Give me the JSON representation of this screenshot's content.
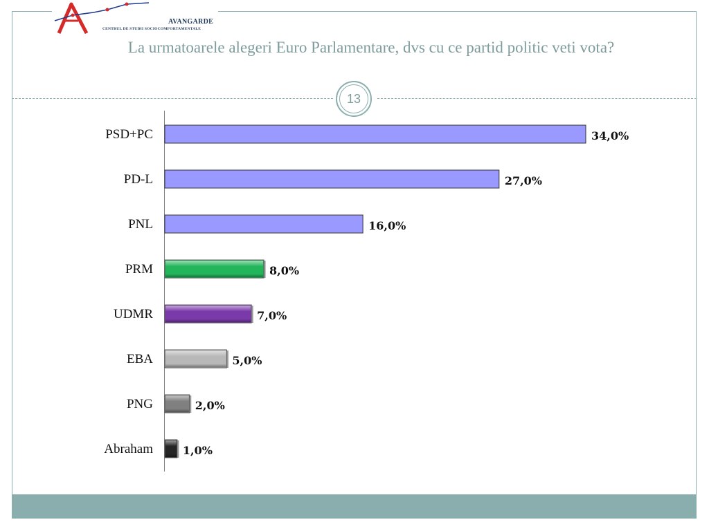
{
  "logo": {
    "name": "AVANGARDE",
    "subtitle": "CENTRUL DE STUDII SOCIOCOMPORTAMENTALE"
  },
  "slide": {
    "title": "La urmatoarele alegeri Euro Parlamentare, dvs cu ce partid politic veti vota?",
    "page_number": "13"
  },
  "colors": {
    "frame": "#8aaeae",
    "title": "#7e9c9c"
  },
  "chart_data": {
    "type": "bar",
    "orientation": "horizontal",
    "categories": [
      "PSD+PC",
      "PD-L",
      "PNL",
      "PRM",
      "UDMR",
      "EBA",
      "PNG",
      "Abraham"
    ],
    "values": [
      34.0,
      27.0,
      16.0,
      8.0,
      7.0,
      5.0,
      2.0,
      1.0
    ],
    "value_labels": [
      "34,0%",
      "27,0%",
      "16,0%",
      "8,0%",
      "7,0%",
      "5,0%",
      "2,0%",
      "1,0%"
    ],
    "bar_colors": [
      "#9999ff",
      "#9999ff",
      "#9999ff",
      "#22b55a",
      "#7a3aaa",
      "#b8b8b8",
      "#808080",
      "#262626"
    ],
    "bar_style": [
      "flat",
      "flat",
      "flat",
      "bevel",
      "bevel",
      "bevel",
      "bevel",
      "bevel"
    ],
    "title": "",
    "xlabel": "",
    "ylabel": "",
    "xlim": [
      0,
      34
    ],
    "grid": false,
    "legend": "none"
  }
}
